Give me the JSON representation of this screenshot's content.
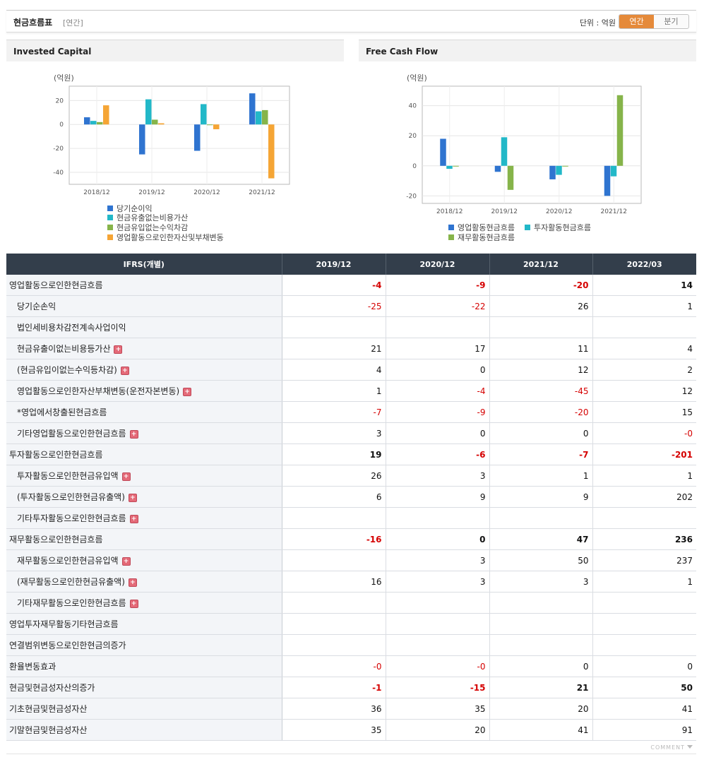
{
  "header": {
    "title": "현금흐름표",
    "period": "[연간]",
    "unit": "단위 : 억원",
    "toggle_annual": "연간",
    "toggle_quarter": "분기"
  },
  "chart_data": [
    {
      "type": "bar",
      "title": "Invested Capital",
      "ylabel": "(억원)",
      "categories": [
        "2018/12",
        "2019/12",
        "2020/12",
        "2021/12"
      ],
      "yticks": [
        20,
        0,
        -20,
        -40
      ],
      "ylim": [
        -50,
        32
      ],
      "grid": true,
      "legend_position": "bottom",
      "series": [
        {
          "name": "당기순이익",
          "color": "#2f74d0",
          "values": [
            6,
            -25,
            -22,
            26
          ]
        },
        {
          "name": "현금유출없는비용가산",
          "color": "#22b8c8",
          "values": [
            3,
            21,
            17,
            11
          ]
        },
        {
          "name": "현금유입없는수익차감",
          "color": "#86b44a",
          "values": [
            2,
            4,
            0,
            12
          ]
        },
        {
          "name": "영업활동으로인한자산및부채변동",
          "color": "#f5a535",
          "values": [
            16,
            1,
            -4,
            -45
          ]
        }
      ]
    },
    {
      "type": "bar",
      "title": "Free Cash Flow",
      "ylabel": "(억원)",
      "categories": [
        "2018/12",
        "2019/12",
        "2020/12",
        "2021/12"
      ],
      "yticks": [
        40,
        20,
        0,
        -20
      ],
      "ylim": [
        -25,
        53
      ],
      "grid": true,
      "legend_position": "bottom",
      "series": [
        {
          "name": "영업활동현금흐름",
          "color": "#2f74d0",
          "values": [
            18,
            -4,
            -9,
            -20
          ]
        },
        {
          "name": "투자활동현금흐름",
          "color": "#22b8c8",
          "values": [
            -2,
            19,
            -6,
            -7
          ]
        },
        {
          "name": "재무활동현금흐름",
          "color": "#86b44a",
          "values": [
            0,
            -16,
            0,
            47
          ]
        }
      ]
    }
  ],
  "table": {
    "header": [
      "IFRS(개별)",
      "2019/12",
      "2020/12",
      "2021/12",
      "2022/03"
    ],
    "rows": [
      {
        "label": "영업활동으로인한현금흐름",
        "level": 0,
        "expand": false,
        "values": [
          "-4",
          "-9",
          "-20",
          "14"
        ]
      },
      {
        "label": "당기순손익",
        "level": 1,
        "expand": false,
        "values": [
          "-25",
          "-22",
          "26",
          "1"
        ]
      },
      {
        "label": "법인세비용차감전계속사업이익",
        "level": 1,
        "expand": false,
        "values": [
          "",
          "",
          "",
          ""
        ]
      },
      {
        "label": "현금유출이없는비용등가산",
        "level": 1,
        "expand": true,
        "values": [
          "21",
          "17",
          "11",
          "4"
        ]
      },
      {
        "label": "(현금유입이없는수익등차감)",
        "level": 1,
        "expand": true,
        "values": [
          "4",
          "0",
          "12",
          "2"
        ]
      },
      {
        "label": "영업활동으로인한자산부채변동(운전자본변동)",
        "level": 1,
        "expand": true,
        "values": [
          "1",
          "-4",
          "-45",
          "12"
        ]
      },
      {
        "label": "*영업에서창출된현금흐름",
        "level": 1,
        "expand": false,
        "values": [
          "-7",
          "-9",
          "-20",
          "15"
        ]
      },
      {
        "label": "기타영업활동으로인한현금흐름",
        "level": 1,
        "expand": true,
        "values": [
          "3",
          "0",
          "0",
          "-0"
        ]
      },
      {
        "label": "투자활동으로인한현금흐름",
        "level": 0,
        "expand": false,
        "values": [
          "19",
          "-6",
          "-7",
          "-201"
        ]
      },
      {
        "label": "투자활동으로인한현금유입액",
        "level": 1,
        "expand": true,
        "values": [
          "26",
          "3",
          "1",
          "1"
        ]
      },
      {
        "label": "(투자활동으로인한현금유출액)",
        "level": 1,
        "expand": true,
        "values": [
          "6",
          "9",
          "9",
          "202"
        ]
      },
      {
        "label": "기타투자활동으로인한현금흐름",
        "level": 1,
        "expand": true,
        "values": [
          "",
          "",
          "",
          ""
        ]
      },
      {
        "label": "재무활동으로인한현금흐름",
        "level": 0,
        "expand": false,
        "values": [
          "-16",
          "0",
          "47",
          "236"
        ]
      },
      {
        "label": "재무활동으로인한현금유입액",
        "level": 1,
        "expand": true,
        "values": [
          "",
          "3",
          "50",
          "237"
        ]
      },
      {
        "label": "(재무활동으로인한현금유출액)",
        "level": 1,
        "expand": true,
        "values": [
          "16",
          "3",
          "3",
          "1"
        ]
      },
      {
        "label": "기타재무활동으로인한현금흐름",
        "level": 1,
        "expand": true,
        "values": [
          "",
          "",
          "",
          ""
        ]
      },
      {
        "label": "영업투자재무활동기타현금흐름",
        "level": 0,
        "expand": false,
        "values": [
          "",
          "",
          "",
          ""
        ]
      },
      {
        "label": "연결범위변동으로인한현금의증가",
        "level": 0,
        "expand": false,
        "values": [
          "",
          "",
          "",
          ""
        ]
      },
      {
        "label": "환율변동효과",
        "level": 0,
        "expand": false,
        "values": [
          "-0",
          "-0",
          "0",
          "0"
        ]
      },
      {
        "label": "현금및현금성자산의증가",
        "level": 0,
        "bold": true,
        "expand": false,
        "values": [
          "-1",
          "-15",
          "21",
          "50"
        ]
      },
      {
        "label": "기초현금및현금성자산",
        "level": 0,
        "expand": false,
        "values": [
          "36",
          "35",
          "20",
          "41"
        ]
      },
      {
        "label": "기말현금및현금성자산",
        "level": 0,
        "expand": false,
        "values": [
          "35",
          "20",
          "41",
          "91"
        ]
      }
    ]
  },
  "footer": {
    "comment": "COMMENT"
  }
}
